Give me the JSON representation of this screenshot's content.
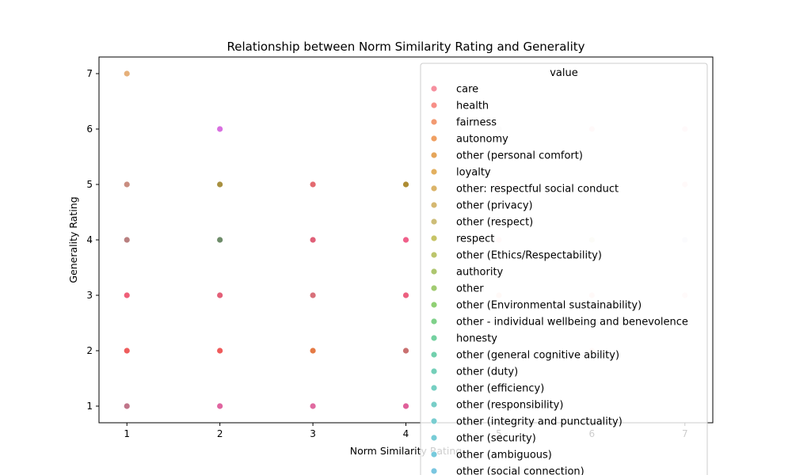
{
  "chart_data": {
    "type": "scatter",
    "title": "Relationship between Norm Similarity Rating and Generality",
    "xlabel": "Norm Similarity Rating",
    "ylabel": "Generality Rating",
    "xlim": [
      0.7,
      7.3
    ],
    "ylim": [
      0.7,
      7.3
    ],
    "xticks": [
      1,
      2,
      3,
      4,
      5,
      6,
      7
    ],
    "yticks": [
      1,
      2,
      3,
      4,
      5,
      6,
      7
    ],
    "grid": false,
    "legend": {
      "title": "value",
      "placement": "upper-right",
      "entries": [
        {
          "label": "care",
          "color": "#f6909f"
        },
        {
          "label": "health",
          "color": "#f78f87"
        },
        {
          "label": "fairness",
          "color": "#f29a72"
        },
        {
          "label": "autonomy",
          "color": "#f0a062"
        },
        {
          "label": "other (personal comfort)",
          "color": "#e5a55a"
        },
        {
          "label": "loyalty",
          "color": "#e3b05f"
        },
        {
          "label": "other: respectful social conduct",
          "color": "#dbb469"
        },
        {
          "label": "other (privacy)",
          "color": "#d5b871"
        },
        {
          "label": "other (respect)",
          "color": "#cdbd78"
        },
        {
          "label": "respect",
          "color": "#c7c466"
        },
        {
          "label": "other (Ethics/Respectability)",
          "color": "#bcc56c"
        },
        {
          "label": "authority",
          "color": "#aec66f"
        },
        {
          "label": "other",
          "color": "#a1cb71"
        },
        {
          "label": "other (Environmental sustainability)",
          "color": "#90d074"
        },
        {
          "label": "other - individual wellbeing and benevolence",
          "color": "#7fd18a"
        },
        {
          "label": "honesty",
          "color": "#74d1a0"
        },
        {
          "label": "other (general cognitive ability)",
          "color": "#72d0ad"
        },
        {
          "label": "other (duty)",
          "color": "#74cfb9"
        },
        {
          "label": "other (efficiency)",
          "color": "#76cfc2"
        },
        {
          "label": "other (responsibility)",
          "color": "#78cec8"
        },
        {
          "label": "other (integrity and punctuality)",
          "color": "#79cdd0"
        },
        {
          "label": "other (security)",
          "color": "#78ccd6"
        },
        {
          "label": "other (ambiguous)",
          "color": "#77cadc"
        },
        {
          "label": "other (social connection)",
          "color": "#7ac6e0"
        }
      ]
    },
    "points": [
      {
        "x": 1,
        "y": 7,
        "color": "#e6b07a"
      },
      {
        "x": 1,
        "y": 5,
        "color": "#c98d80"
      },
      {
        "x": 1,
        "y": 4,
        "color": "#b98080"
      },
      {
        "x": 1,
        "y": 3,
        "color": "#ef5f78"
      },
      {
        "x": 1,
        "y": 2,
        "color": "#ee5d5d"
      },
      {
        "x": 1,
        "y": 1,
        "color": "#c0758a"
      },
      {
        "x": 2,
        "y": 6,
        "color": "#d86fe0"
      },
      {
        "x": 2,
        "y": 5,
        "color": "#a89040"
      },
      {
        "x": 2,
        "y": 4,
        "color": "#6e8c6a"
      },
      {
        "x": 2,
        "y": 3,
        "color": "#e36078"
      },
      {
        "x": 2,
        "y": 2,
        "color": "#ef5b5b"
      },
      {
        "x": 2,
        "y": 1,
        "color": "#e065a0"
      },
      {
        "x": 3,
        "y": 5,
        "color": "#e36a70"
      },
      {
        "x": 3,
        "y": 4,
        "color": "#e06078"
      },
      {
        "x": 3,
        "y": 3,
        "color": "#d8707a"
      },
      {
        "x": 3,
        "y": 2,
        "color": "#e57a45"
      },
      {
        "x": 3,
        "y": 1,
        "color": "#e06aa0"
      },
      {
        "x": 4,
        "y": 5,
        "color": "#ad8c34"
      },
      {
        "x": 4,
        "y": 4,
        "color": "#f0608a"
      },
      {
        "x": 4,
        "y": 3,
        "color": "#ec6080"
      },
      {
        "x": 4,
        "y": 2,
        "color": "#c97070"
      },
      {
        "x": 4,
        "y": 1,
        "color": "#e0609a"
      },
      {
        "x": 5,
        "y": 6,
        "color": "#ededed"
      },
      {
        "x": 5,
        "y": 5,
        "color": "#fde0e0"
      },
      {
        "x": 5,
        "y": 4,
        "color": "#fde2e2"
      },
      {
        "x": 5,
        "y": 3,
        "color": "#fde0d8"
      },
      {
        "x": 6,
        "y": 6,
        "color": "#fde0e0"
      },
      {
        "x": 6,
        "y": 5,
        "color": "#fdf0e0"
      },
      {
        "x": 6,
        "y": 4,
        "color": "#eeeedd"
      },
      {
        "x": 6,
        "y": 3,
        "color": "#fde0dc"
      },
      {
        "x": 6,
        "y": 2,
        "color": "#fde6e0"
      },
      {
        "x": 7,
        "y": 6,
        "color": "#fde0e6"
      },
      {
        "x": 7,
        "y": 5,
        "color": "#fde0e0"
      },
      {
        "x": 7,
        "y": 4,
        "color": "#eaeaf5"
      },
      {
        "x": 7,
        "y": 3,
        "color": "#fde6e6"
      }
    ]
  }
}
